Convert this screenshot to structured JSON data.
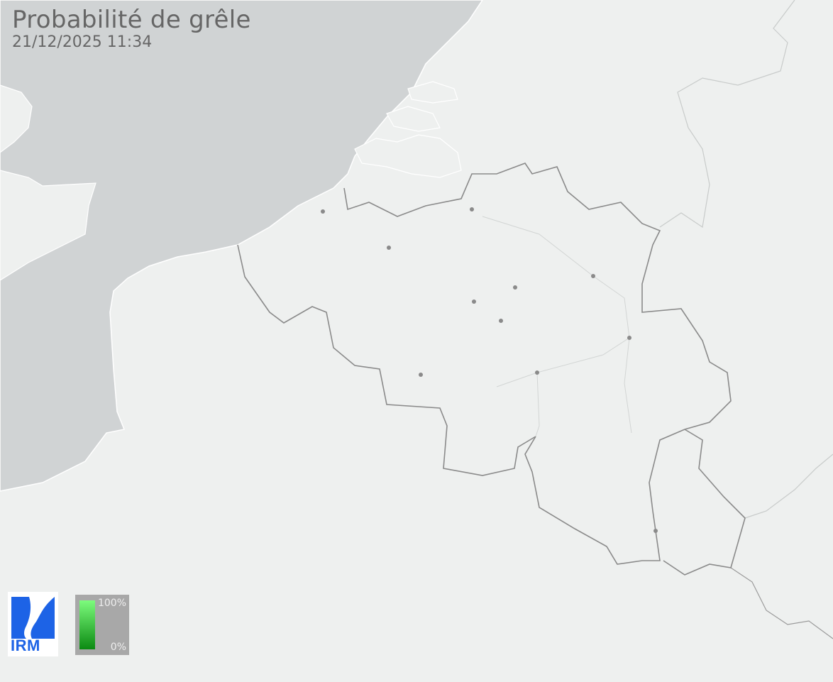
{
  "header": {
    "title": "Probabilité de grêle",
    "timestamp": "21/12/2025 11:34"
  },
  "logo": {
    "text": "IRM",
    "color": "#1d63e6"
  },
  "legend": {
    "max_label": "100%",
    "min_label": "0%",
    "gradient_top": "#7dfc7d",
    "gradient_bottom": "#0b8a12"
  },
  "colors": {
    "land": "#eef0ef",
    "sea": "#d0d3d4",
    "border": "#8a8a8a"
  }
}
